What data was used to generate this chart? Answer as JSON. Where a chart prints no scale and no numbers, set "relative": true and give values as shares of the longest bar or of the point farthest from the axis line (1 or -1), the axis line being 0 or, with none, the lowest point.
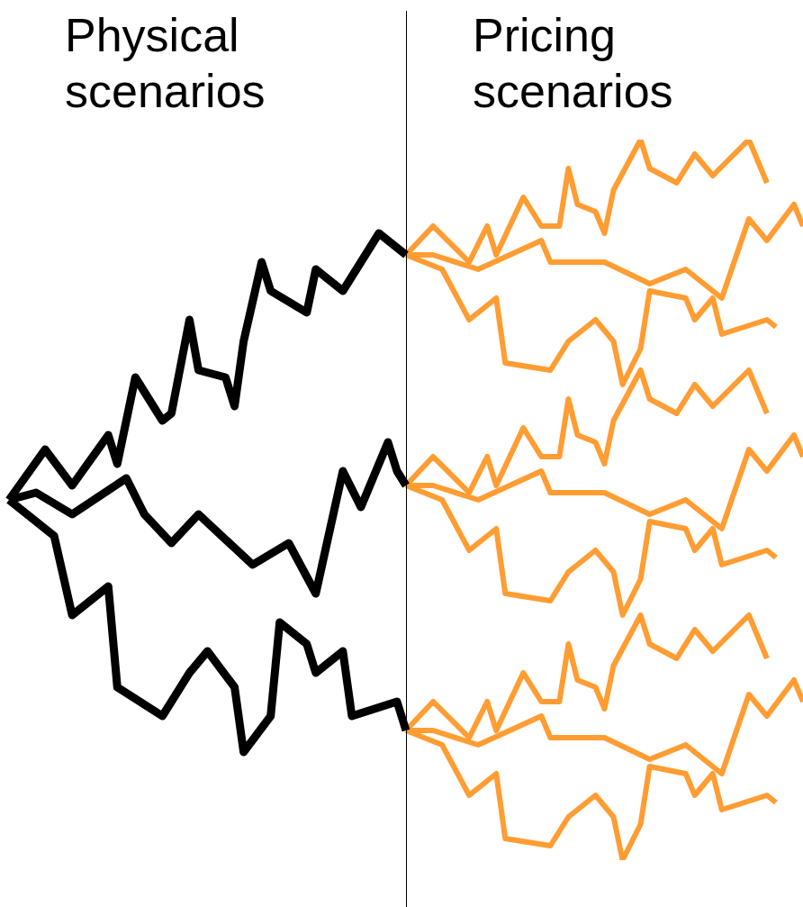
{
  "chart_data": {
    "type": "line",
    "relative": true,
    "legend": false,
    "tick_labels": false,
    "marker": "none",
    "annotations": [
      "Physical scenarios",
      "Pricing scenarios"
    ],
    "categories": [
      null,
      null,
      null,
      null,
      null,
      null,
      null,
      null,
      null,
      null,
      null,
      null,
      null,
      null,
      null,
      null,
      null,
      null,
      null,
      null,
      null,
      null,
      null,
      null,
      null,
      null,
      null,
      null,
      null,
      null,
      null,
      null,
      null,
      null,
      null,
      null,
      null,
      null,
      null,
      null,
      null,
      null,
      null,
      null,
      null,
      null,
      null,
      null,
      null,
      null,
      null,
      null,
      null,
      null,
      null,
      null,
      null,
      null,
      null,
      null,
      null,
      null,
      null,
      null,
      null,
      null,
      null,
      null,
      null,
      null,
      null,
      null,
      null,
      null,
      null,
      null,
      null,
      null,
      null,
      null,
      null,
      null,
      null,
      null,
      null,
      null,
      null,
      null,
      null,
      null
    ],
    "series": [
      {
        "color": "#000000",
        "values": [
          null,
          0.5,
          null,
          null,
          null,
          0.57,
          null,
          null,
          0.52,
          null,
          null,
          null,
          0.59,
          0.55,
          null,
          0.67,
          null,
          null,
          0.61,
          0.62,
          null,
          0.75,
          0.68,
          null,
          null,
          0.67,
          0.63,
          0.72,
          null,
          0.83,
          0.79,
          null,
          null,
          null,
          0.76,
          0.82,
          null,
          null,
          0.79,
          null,
          null,
          null,
          0.87,
          null,
          null,
          0.84,
          null,
          null,
          null,
          null,
          null,
          null,
          null,
          null,
          null,
          null,
          null,
          null,
          null,
          null,
          null,
          null,
          null,
          null,
          null,
          null,
          null,
          null,
          null,
          null,
          null,
          null,
          null,
          null,
          null,
          null,
          null,
          null,
          null,
          null,
          null,
          null,
          null,
          null,
          null,
          null,
          null,
          null,
          null,
          null
        ]
      },
      {
        "color": "#000000",
        "values": [
          null,
          0.5,
          null,
          null,
          0.51,
          null,
          null,
          null,
          0.48,
          null,
          null,
          null,
          null,
          null,
          0.53,
          null,
          0.48,
          null,
          null,
          0.44,
          null,
          null,
          0.48,
          null,
          null,
          null,
          null,
          null,
          0.41,
          null,
          null,
          null,
          0.44,
          null,
          null,
          0.37,
          null,
          null,
          0.54,
          null,
          0.49,
          null,
          null,
          0.58,
          0.54,
          0.52,
          null,
          null,
          null,
          null,
          null,
          null,
          null,
          null,
          null,
          null,
          null,
          null,
          null,
          null,
          null,
          null,
          null,
          null,
          null,
          null,
          null,
          null,
          null,
          null,
          null,
          null,
          null,
          null,
          null,
          null,
          null,
          null,
          null,
          null,
          null,
          null,
          null,
          null,
          null,
          null,
          null,
          null,
          null,
          null
        ]
      },
      {
        "color": "#000000",
        "values": [
          null,
          0.5,
          null,
          null,
          null,
          null,
          0.45,
          null,
          0.34,
          null,
          null,
          null,
          0.38,
          0.24,
          null,
          null,
          null,
          null,
          0.2,
          null,
          null,
          0.26,
          null,
          0.29,
          null,
          null,
          0.24,
          0.15,
          null,
          null,
          0.2,
          0.33,
          null,
          null,
          0.3,
          0.26,
          null,
          null,
          0.29,
          0.2,
          null,
          null,
          null,
          null,
          0.22,
          0.18,
          null,
          null,
          null,
          null,
          null,
          null,
          null,
          null,
          null,
          null,
          null,
          null,
          null,
          null,
          null,
          null,
          null,
          null,
          null,
          null,
          null,
          null,
          null,
          null,
          null,
          null,
          null,
          null,
          null,
          null,
          null,
          null,
          null,
          null,
          null,
          null,
          null,
          null,
          null,
          null,
          null,
          null,
          null,
          null
        ]
      },
      {
        "color": "#ff9d33",
        "values": [
          null,
          null,
          null,
          null,
          null,
          null,
          null,
          null,
          null,
          null,
          null,
          null,
          null,
          null,
          null,
          null,
          null,
          null,
          null,
          null,
          null,
          null,
          null,
          null,
          null,
          null,
          null,
          null,
          null,
          null,
          null,
          null,
          null,
          null,
          null,
          null,
          null,
          null,
          null,
          null,
          null,
          null,
          null,
          null,
          null,
          0.84,
          null,
          null,
          0.88,
          null,
          null,
          null,
          0.83,
          null,
          0.88,
          0.84,
          null,
          null,
          0.92,
          null,
          0.88,
          null,
          0.88,
          0.96,
          0.91,
          null,
          0.9,
          0.87,
          0.93,
          null,
          null,
          1.0,
          0.96,
          null,
          null,
          0.94,
          null,
          0.98,
          null,
          0.95,
          null,
          null,
          null,
          1.0,
          null,
          0.94,
          null,
          null,
          null,
          null
        ]
      },
      {
        "color": "#ff9d33",
        "values": [
          null,
          null,
          null,
          null,
          null,
          null,
          null,
          null,
          null,
          null,
          null,
          null,
          null,
          null,
          null,
          null,
          null,
          null,
          null,
          null,
          null,
          null,
          null,
          null,
          null,
          null,
          null,
          null,
          null,
          null,
          null,
          null,
          null,
          null,
          null,
          null,
          null,
          null,
          null,
          null,
          null,
          null,
          null,
          null,
          null,
          0.84,
          null,
          null,
          0.84,
          null,
          null,
          null,
          null,
          0.82,
          null,
          null,
          null,
          null,
          null,
          null,
          0.86,
          0.83,
          null,
          null,
          null,
          null,
          null,
          0.83,
          null,
          null,
          null,
          null,
          0.8,
          null,
          null,
          null,
          0.82,
          null,
          null,
          null,
          0.78,
          null,
          null,
          0.89,
          null,
          0.86,
          null,
          null,
          0.91,
          0.88
        ]
      },
      {
        "color": "#ff9d33",
        "values": [
          null,
          null,
          null,
          null,
          null,
          null,
          null,
          null,
          null,
          null,
          null,
          null,
          null,
          null,
          null,
          null,
          null,
          null,
          null,
          null,
          null,
          null,
          null,
          null,
          null,
          null,
          null,
          null,
          null,
          null,
          null,
          null,
          null,
          null,
          null,
          null,
          null,
          null,
          null,
          null,
          null,
          null,
          null,
          null,
          null,
          0.84,
          null,
          null,
          null,
          0.82,
          null,
          null,
          0.75,
          null,
          null,
          0.78,
          0.69,
          null,
          null,
          null,
          null,
          0.68,
          null,
          0.72,
          null,
          null,
          0.75,
          null,
          0.72,
          0.66,
          null,
          0.71,
          0.79,
          null,
          null,
          null,
          0.78,
          0.75,
          null,
          0.78,
          0.73,
          null,
          null,
          null,
          null,
          0.75,
          0.74,
          null,
          null,
          null
        ]
      },
      {
        "color": "#ff9d33",
        "values": [
          null,
          null,
          null,
          null,
          null,
          null,
          null,
          null,
          null,
          null,
          null,
          null,
          null,
          null,
          null,
          null,
          null,
          null,
          null,
          null,
          null,
          null,
          null,
          null,
          null,
          null,
          null,
          null,
          null,
          null,
          null,
          null,
          null,
          null,
          null,
          null,
          null,
          null,
          null,
          null,
          null,
          null,
          null,
          null,
          null,
          0.52,
          null,
          null,
          0.56,
          null,
          null,
          null,
          0.51,
          null,
          0.56,
          0.52,
          null,
          null,
          0.6,
          null,
          0.56,
          null,
          0.56,
          0.64,
          0.59,
          null,
          0.58,
          0.55,
          0.61,
          null,
          null,
          0.68,
          0.64,
          null,
          null,
          0.62,
          null,
          0.66,
          null,
          0.63,
          null,
          null,
          null,
          0.68,
          null,
          0.62,
          null,
          null,
          null,
          null
        ]
      },
      {
        "color": "#ff9d33",
        "values": [
          null,
          null,
          null,
          null,
          null,
          null,
          null,
          null,
          null,
          null,
          null,
          null,
          null,
          null,
          null,
          null,
          null,
          null,
          null,
          null,
          null,
          null,
          null,
          null,
          null,
          null,
          null,
          null,
          null,
          null,
          null,
          null,
          null,
          null,
          null,
          null,
          null,
          null,
          null,
          null,
          null,
          null,
          null,
          null,
          null,
          0.52,
          null,
          null,
          0.52,
          null,
          null,
          null,
          null,
          0.5,
          null,
          null,
          null,
          null,
          null,
          null,
          0.54,
          0.51,
          null,
          null,
          null,
          null,
          null,
          0.51,
          null,
          null,
          null,
          null,
          0.48,
          null,
          null,
          null,
          0.5,
          null,
          null,
          null,
          0.46,
          null,
          null,
          0.57,
          null,
          0.54,
          null,
          null,
          0.59,
          0.56
        ]
      },
      {
        "color": "#ff9d33",
        "values": [
          null,
          null,
          null,
          null,
          null,
          null,
          null,
          null,
          null,
          null,
          null,
          null,
          null,
          null,
          null,
          null,
          null,
          null,
          null,
          null,
          null,
          null,
          null,
          null,
          null,
          null,
          null,
          null,
          null,
          null,
          null,
          null,
          null,
          null,
          null,
          null,
          null,
          null,
          null,
          null,
          null,
          null,
          null,
          null,
          null,
          0.52,
          null,
          null,
          null,
          0.5,
          null,
          null,
          0.43,
          null,
          null,
          0.46,
          0.37,
          null,
          null,
          null,
          null,
          0.36,
          null,
          0.4,
          null,
          null,
          0.43,
          null,
          0.4,
          0.34,
          null,
          0.39,
          0.47,
          null,
          null,
          null,
          0.46,
          0.43,
          null,
          0.46,
          0.41,
          null,
          null,
          null,
          null,
          0.43,
          0.42,
          null,
          null,
          null
        ]
      },
      {
        "color": "#ff9d33",
        "values": [
          null,
          null,
          null,
          null,
          null,
          null,
          null,
          null,
          null,
          null,
          null,
          null,
          null,
          null,
          null,
          null,
          null,
          null,
          null,
          null,
          null,
          null,
          null,
          null,
          null,
          null,
          null,
          null,
          null,
          null,
          null,
          null,
          null,
          null,
          null,
          null,
          null,
          null,
          null,
          null,
          null,
          null,
          null,
          null,
          null,
          0.18,
          null,
          null,
          0.22,
          null,
          null,
          null,
          0.17,
          null,
          0.22,
          0.18,
          null,
          null,
          0.26,
          null,
          0.22,
          null,
          0.22,
          0.3,
          0.25,
          null,
          0.24,
          0.21,
          0.27,
          null,
          null,
          0.34,
          0.3,
          null,
          null,
          0.28,
          null,
          0.32,
          null,
          0.29,
          null,
          null,
          null,
          0.34,
          null,
          0.28,
          null,
          null,
          null,
          null
        ]
      },
      {
        "color": "#ff9d33",
        "values": [
          null,
          null,
          null,
          null,
          null,
          null,
          null,
          null,
          null,
          null,
          null,
          null,
          null,
          null,
          null,
          null,
          null,
          null,
          null,
          null,
          null,
          null,
          null,
          null,
          null,
          null,
          null,
          null,
          null,
          null,
          null,
          null,
          null,
          null,
          null,
          null,
          null,
          null,
          null,
          null,
          null,
          null,
          null,
          null,
          null,
          0.18,
          null,
          null,
          0.18,
          null,
          null,
          null,
          null,
          0.16,
          null,
          null,
          null,
          null,
          null,
          null,
          0.2,
          0.17,
          null,
          null,
          null,
          null,
          null,
          0.17,
          null,
          null,
          null,
          null,
          0.14,
          null,
          null,
          null,
          0.16,
          null,
          null,
          null,
          0.12,
          null,
          null,
          0.23,
          null,
          0.2,
          null,
          null,
          0.25,
          0.22
        ]
      },
      {
        "color": "#ff9d33",
        "values": [
          null,
          null,
          null,
          null,
          null,
          null,
          null,
          null,
          null,
          null,
          null,
          null,
          null,
          null,
          null,
          null,
          null,
          null,
          null,
          null,
          null,
          null,
          null,
          null,
          null,
          null,
          null,
          null,
          null,
          null,
          null,
          null,
          null,
          null,
          null,
          null,
          null,
          null,
          null,
          null,
          null,
          null,
          null,
          null,
          null,
          0.18,
          null,
          null,
          null,
          0.16,
          null,
          null,
          0.09,
          null,
          null,
          0.12,
          0.03,
          null,
          null,
          null,
          null,
          0.02,
          null,
          0.06,
          null,
          null,
          0.09,
          null,
          0.06,
          0.0,
          null,
          0.05,
          0.13,
          null,
          null,
          null,
          0.12,
          0.09,
          null,
          0.12,
          0.07,
          null,
          null,
          null,
          null,
          0.09,
          0.08,
          null,
          null,
          null
        ]
      }
    ]
  }
}
